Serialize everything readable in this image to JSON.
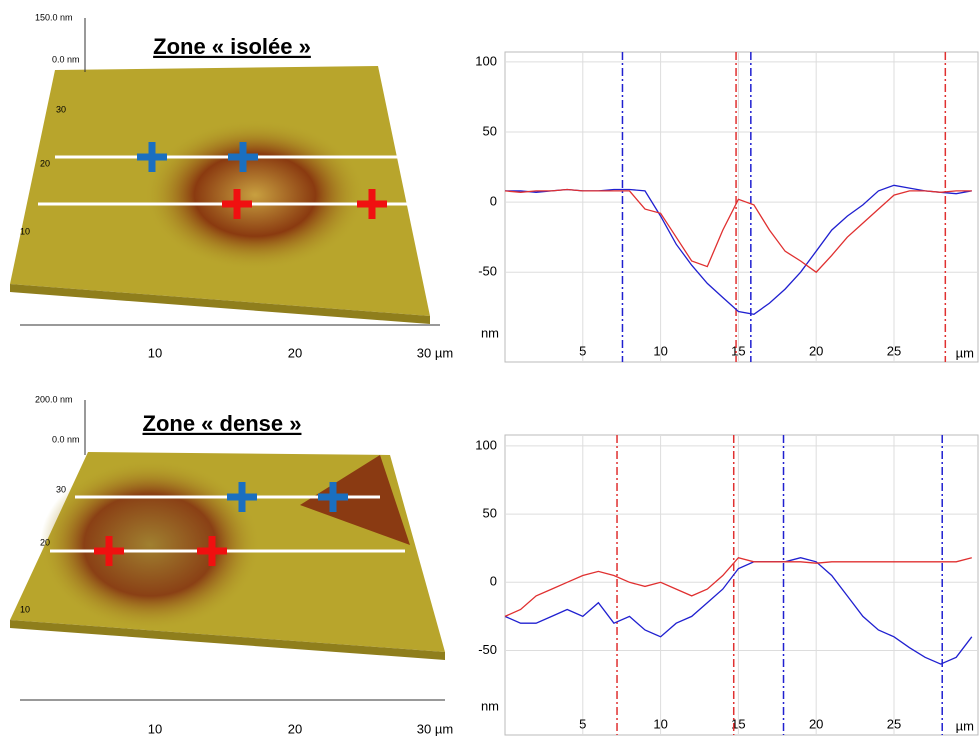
{
  "afm_images": [
    {
      "title": "Zone « isolée »",
      "z_labels": [
        "150.0 nm",
        "0.0 nm"
      ],
      "y_labels": [
        "30",
        "20",
        "10"
      ],
      "x_labels": [
        "10",
        "20",
        "30 µm"
      ]
    },
    {
      "title": "Zone « dense »",
      "z_labels": [
        "200.0 nm",
        "0.0 nm"
      ],
      "y_labels": [
        "30",
        "20",
        "10"
      ],
      "x_labels": [
        "10",
        "20",
        "30 µm"
      ]
    }
  ],
  "chart_data": [
    {
      "type": "line",
      "xlabel": "µm",
      "ylabel": "nm",
      "x": [
        0,
        1,
        2,
        3,
        4,
        5,
        6,
        7,
        8,
        9,
        10,
        11,
        12,
        13,
        14,
        15,
        16,
        17,
        18,
        19,
        20,
        21,
        22,
        23,
        24,
        25,
        26,
        27,
        28,
        29,
        30
      ],
      "series": [
        {
          "color": "#2020d0",
          "values": [
            8,
            8,
            7,
            8,
            9,
            8,
            8,
            9,
            9,
            8,
            -10,
            -30,
            -45,
            -58,
            -68,
            -78,
            -80,
            -72,
            -62,
            -50,
            -35,
            -20,
            -10,
            -2,
            8,
            12,
            10,
            8,
            7,
            6,
            8
          ]
        },
        {
          "color": "#e03030",
          "values": [
            8,
            7,
            8,
            8,
            9,
            8,
            8,
            8,
            8,
            -5,
            -8,
            -25,
            -42,
            -46,
            -20,
            2,
            -2,
            -20,
            -35,
            -42,
            -50,
            -38,
            -25,
            -15,
            -5,
            5,
            8,
            8,
            7,
            8,
            8
          ]
        }
      ],
      "markers": [
        {
          "x": 7.55,
          "color": "#2020d0"
        },
        {
          "x": 15.8,
          "color": "#2020d0"
        },
        {
          "x": 14.85,
          "color": "#e03030"
        },
        {
          "x": 28.3,
          "color": "#e03030"
        }
      ],
      "xlim": [
        0,
        30.4
      ],
      "ylim": [
        -114,
        107
      ],
      "xticks": [
        5,
        10,
        15,
        20,
        25
      ],
      "yticks": [
        -50,
        0,
        50,
        100
      ],
      "grid": true
    },
    {
      "type": "line",
      "xlabel": "µm",
      "ylabel": "nm",
      "x": [
        0,
        1,
        2,
        3,
        4,
        5,
        6,
        7,
        8,
        9,
        10,
        11,
        12,
        13,
        14,
        15,
        16,
        17,
        18,
        19,
        20,
        21,
        22,
        23,
        24,
        25,
        26,
        27,
        28,
        29,
        30
      ],
      "series": [
        {
          "color": "#2020d0",
          "values": [
            -25,
            -30,
            -30,
            -25,
            -20,
            -25,
            -15,
            -30,
            -25,
            -35,
            -40,
            -30,
            -25,
            -15,
            -5,
            10,
            15,
            15,
            15,
            18,
            15,
            5,
            -10,
            -25,
            -35,
            -40,
            -48,
            -55,
            -60,
            -55,
            -40
          ]
        },
        {
          "color": "#e03030",
          "values": [
            -25,
            -20,
            -10,
            -5,
            0,
            5,
            8,
            5,
            0,
            -3,
            0,
            -5,
            -10,
            -5,
            5,
            18,
            15,
            15,
            15,
            15,
            14,
            15,
            15,
            15,
            15,
            15,
            15,
            15,
            15,
            15,
            18
          ]
        }
      ],
      "markers": [
        {
          "x": 7.2,
          "color": "#e03030"
        },
        {
          "x": 14.7,
          "color": "#e03030"
        },
        {
          "x": 17.9,
          "color": "#2020d0"
        },
        {
          "x": 28.1,
          "color": "#2020d0"
        }
      ],
      "xlim": [
        0,
        30.4
      ],
      "ylim": [
        -112,
        108
      ],
      "xticks": [
        5,
        10,
        15,
        20,
        25
      ],
      "yticks": [
        -50,
        0,
        50,
        100
      ],
      "grid": true
    }
  ]
}
